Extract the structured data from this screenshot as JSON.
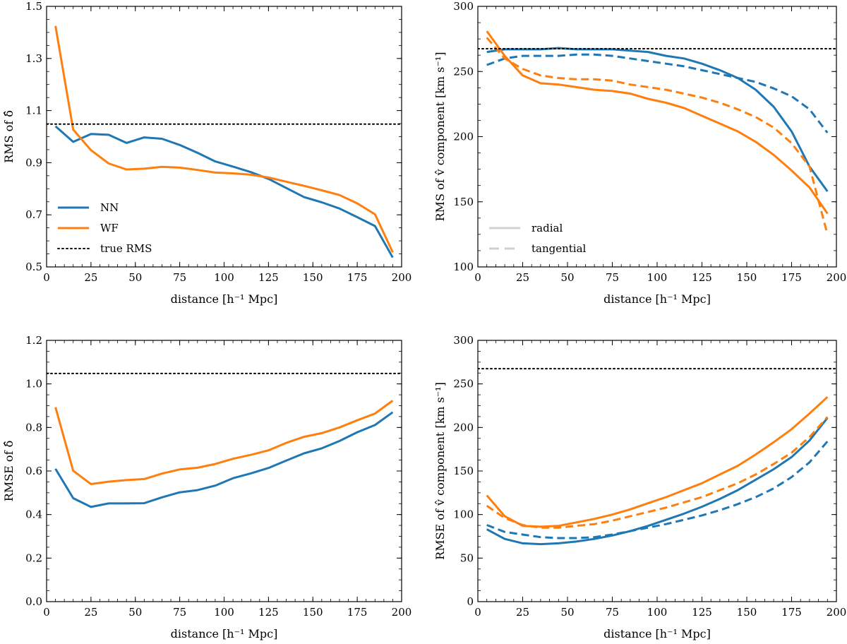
{
  "colors": {
    "NN": "#1f77b4",
    "WF": "#ff7f0e",
    "reference": "#000000"
  },
  "chart_data": [
    {
      "id": "rms-delta",
      "type": "line",
      "title": "",
      "xlabel": "distance [h⁻¹ Mpc]",
      "ylabel": "RMS of δ̂",
      "xlim": [
        0,
        200
      ],
      "ylim": [
        0.5,
        1.5
      ],
      "xticks": [
        "0",
        "25",
        "50",
        "75",
        "100",
        "125",
        "150",
        "175",
        "200"
      ],
      "yticks": [
        "0.5",
        "0.7",
        "0.9",
        "1.1",
        "1.3",
        "1.5"
      ],
      "grid": false,
      "legend_position": "lower-left",
      "legend": [
        {
          "label": "NN",
          "style": "solid",
          "color_key": "NN"
        },
        {
          "label": "WF",
          "style": "solid",
          "color_key": "WF"
        },
        {
          "label": "true RMS",
          "style": "dotted",
          "color_key": "reference"
        }
      ],
      "x": [
        5,
        15,
        25,
        35,
        45,
        55,
        65,
        75,
        85,
        95,
        105,
        115,
        125,
        135,
        145,
        155,
        165,
        175,
        185,
        195
      ],
      "series": [
        {
          "name": "NN",
          "style": "solid",
          "color_key": "NN",
          "values": [
            1.04,
            0.98,
            1.01,
            1.007,
            0.976,
            0.997,
            0.992,
            0.968,
            0.938,
            0.905,
            0.885,
            0.864,
            0.838,
            0.803,
            0.768,
            0.748,
            0.724,
            0.691,
            0.657,
            0.536
          ]
        },
        {
          "name": "WF",
          "style": "solid",
          "color_key": "WF",
          "values": [
            1.425,
            1.027,
            0.948,
            0.897,
            0.874,
            0.877,
            0.884,
            0.881,
            0.872,
            0.862,
            0.859,
            0.854,
            0.843,
            0.827,
            0.811,
            0.794,
            0.776,
            0.744,
            0.702,
            0.556
          ]
        },
        {
          "name": "true RMS",
          "style": "dotted",
          "color_key": "reference",
          "hline": 1.048
        }
      ]
    },
    {
      "id": "rms-v",
      "type": "line",
      "title": "",
      "xlabel": "distance [h⁻¹ Mpc]",
      "ylabel": "RMS of v̂ component [km s⁻¹]",
      "xlim": [
        0,
        200
      ],
      "ylim": [
        100,
        300
      ],
      "xticks": [
        "0",
        "25",
        "50",
        "75",
        "100",
        "125",
        "150",
        "175",
        "200"
      ],
      "yticks": [
        "100",
        "150",
        "200",
        "250",
        "300"
      ],
      "grid": false,
      "legend_position": "lower-left",
      "legend": [
        {
          "label": "radial",
          "style": "solid",
          "color_key": "legend_gray"
        },
        {
          "label": "tangential",
          "style": "dashed",
          "color_key": "legend_gray"
        }
      ],
      "x": [
        5,
        15,
        25,
        35,
        45,
        55,
        65,
        75,
        85,
        95,
        105,
        115,
        125,
        135,
        145,
        155,
        165,
        175,
        185,
        195
      ],
      "series": [
        {
          "name": "NN radial",
          "style": "solid",
          "color_key": "NN",
          "values": [
            265,
            267,
            267,
            267,
            268,
            267,
            267,
            267,
            266,
            265,
            262,
            260,
            256,
            251,
            245,
            236,
            223,
            204,
            177,
            158
          ]
        },
        {
          "name": "NN tangential",
          "style": "dashed",
          "color_key": "NN",
          "values": [
            255,
            260,
            262,
            262,
            262,
            263,
            263,
            262,
            260,
            258,
            256,
            254,
            251,
            248,
            245,
            242,
            237,
            231,
            221,
            203
          ]
        },
        {
          "name": "WF radial",
          "style": "solid",
          "color_key": "WF",
          "values": [
            281,
            262,
            247,
            241,
            240,
            238,
            236,
            235,
            233,
            229,
            226,
            222,
            216,
            210,
            204,
            196,
            186,
            174,
            161,
            141
          ]
        },
        {
          "name": "WF tangential",
          "style": "dashed",
          "color_key": "WF",
          "values": [
            276,
            260,
            252,
            247,
            245,
            244,
            244,
            243,
            240,
            238,
            236,
            233,
            230,
            226,
            221,
            215,
            207,
            195,
            177,
            125
          ]
        },
        {
          "name": "true RMS",
          "style": "dotted",
          "color_key": "reference",
          "hline": 267.5
        }
      ]
    },
    {
      "id": "rmse-delta",
      "type": "line",
      "title": "",
      "xlabel": "distance [h⁻¹ Mpc]",
      "ylabel": "RMSE of δ̂",
      "xlim": [
        0,
        200
      ],
      "ylim": [
        0.0,
        1.2
      ],
      "xticks": [
        "0",
        "25",
        "50",
        "75",
        "100",
        "125",
        "150",
        "175",
        "200"
      ],
      "yticks": [
        "0.0",
        "0.2",
        "0.4",
        "0.6",
        "0.8",
        "1.0",
        "1.2"
      ],
      "grid": false,
      "legend": [],
      "x": [
        5,
        15,
        25,
        35,
        45,
        55,
        65,
        75,
        85,
        95,
        105,
        115,
        125,
        135,
        145,
        155,
        165,
        175,
        185,
        195
      ],
      "series": [
        {
          "name": "NN",
          "style": "solid",
          "color_key": "NN",
          "values": [
            0.61,
            0.475,
            0.435,
            0.451,
            0.451,
            0.452,
            0.479,
            0.502,
            0.512,
            0.533,
            0.567,
            0.589,
            0.614,
            0.648,
            0.681,
            0.704,
            0.738,
            0.778,
            0.811,
            0.87
          ]
        },
        {
          "name": "WF",
          "style": "solid",
          "color_key": "WF",
          "values": [
            0.893,
            0.601,
            0.54,
            0.551,
            0.558,
            0.563,
            0.588,
            0.607,
            0.615,
            0.632,
            0.656,
            0.674,
            0.695,
            0.729,
            0.757,
            0.774,
            0.8,
            0.833,
            0.864,
            0.923
          ]
        },
        {
          "name": "true RMS",
          "style": "dotted",
          "color_key": "reference",
          "hline": 1.048
        }
      ]
    },
    {
      "id": "rmse-v",
      "type": "line",
      "title": "",
      "xlabel": "distance [h⁻¹ Mpc]",
      "ylabel": "RMSE of v̂ component [km s⁻¹]",
      "xlim": [
        0,
        200
      ],
      "ylim": [
        0,
        300
      ],
      "xticks": [
        "0",
        "25",
        "50",
        "75",
        "100",
        "125",
        "150",
        "175",
        "200"
      ],
      "yticks": [
        "0",
        "50",
        "100",
        "150",
        "200",
        "250",
        "300"
      ],
      "grid": false,
      "legend": [],
      "x": [
        5,
        15,
        25,
        35,
        45,
        55,
        65,
        75,
        85,
        95,
        105,
        115,
        125,
        135,
        145,
        155,
        165,
        175,
        185,
        195
      ],
      "series": [
        {
          "name": "NN radial",
          "style": "solid",
          "color_key": "NN",
          "values": [
            83,
            72,
            67,
            66,
            67,
            69,
            72,
            76,
            81,
            87,
            94,
            101,
            109,
            118,
            128,
            140,
            152,
            166,
            185,
            211
          ]
        },
        {
          "name": "NN tangential",
          "style": "dashed",
          "color_key": "NN",
          "values": [
            88,
            80,
            77,
            74,
            73,
            73,
            74,
            77,
            81,
            85,
            89,
            94,
            99,
            105,
            112,
            120,
            130,
            143,
            160,
            184
          ]
        },
        {
          "name": "WF radial",
          "style": "solid",
          "color_key": "WF",
          "values": [
            122,
            98,
            87,
            86,
            87,
            91,
            95,
            100,
            106,
            113,
            120,
            128,
            136,
            146,
            156,
            169,
            183,
            198,
            216,
            235
          ]
        },
        {
          "name": "WF tangential",
          "style": "dashed",
          "color_key": "WF",
          "values": [
            110,
            96,
            88,
            85,
            85,
            87,
            89,
            93,
            98,
            103,
            108,
            114,
            120,
            128,
            136,
            146,
            158,
            171,
            189,
            212
          ]
        },
        {
          "name": "true RMS",
          "style": "dotted",
          "color_key": "reference",
          "hline": 267.5
        }
      ]
    }
  ]
}
